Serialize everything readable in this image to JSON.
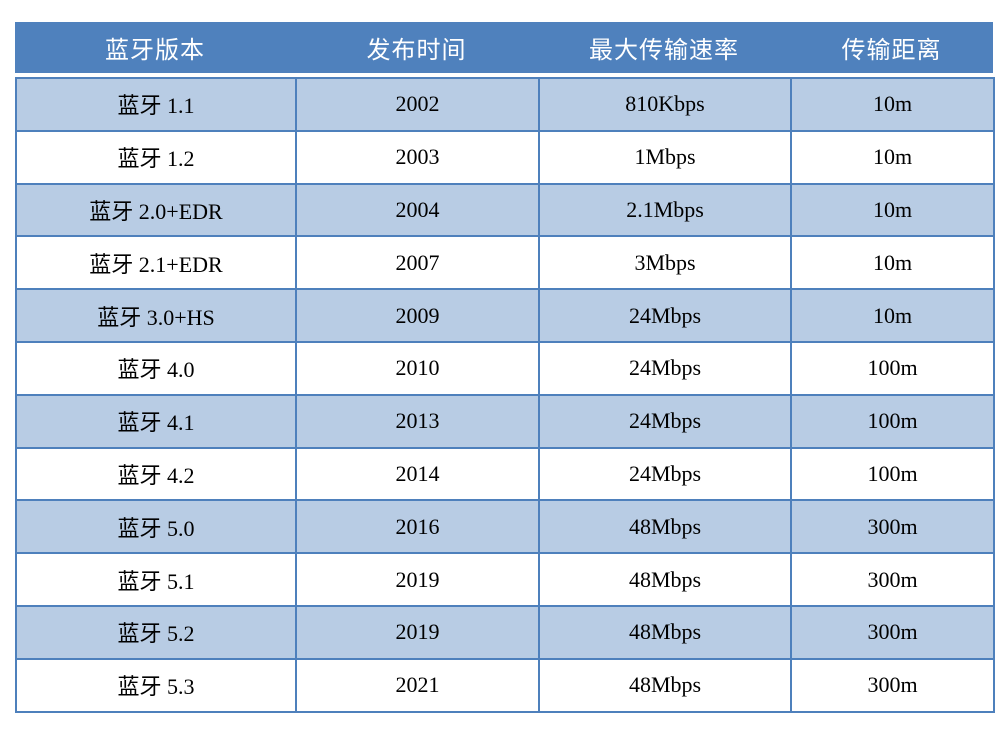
{
  "table": {
    "columns": [
      {
        "label": "蓝牙版本"
      },
      {
        "label": "发布时间"
      },
      {
        "label": "最大传输速率"
      },
      {
        "label": "传输距离"
      }
    ],
    "rows": [
      {
        "version": "蓝牙 1.1",
        "release_year": "2002",
        "max_speed": "810Kbps",
        "range": "10m"
      },
      {
        "version": "蓝牙 1.2",
        "release_year": "2003",
        "max_speed": "1Mbps",
        "range": "10m"
      },
      {
        "version": "蓝牙 2.0+EDR",
        "release_year": "2004",
        "max_speed": "2.1Mbps",
        "range": "10m"
      },
      {
        "version": "蓝牙 2.1+EDR",
        "release_year": "2007",
        "max_speed": "3Mbps",
        "range": "10m"
      },
      {
        "version": "蓝牙 3.0+HS",
        "release_year": "2009",
        "max_speed": "24Mbps",
        "range": "10m"
      },
      {
        "version": "蓝牙 4.0",
        "release_year": "2010",
        "max_speed": "24Mbps",
        "range": "100m"
      },
      {
        "version": "蓝牙 4.1",
        "release_year": "2013",
        "max_speed": "24Mbps",
        "range": "100m"
      },
      {
        "version": "蓝牙 4.2",
        "release_year": "2014",
        "max_speed": "24Mbps",
        "range": "100m"
      },
      {
        "version": "蓝牙 5.0",
        "release_year": "2016",
        "max_speed": "48Mbps",
        "range": "300m"
      },
      {
        "version": "蓝牙 5.1",
        "release_year": "2019",
        "max_speed": "48Mbps",
        "range": "300m"
      },
      {
        "version": "蓝牙 5.2",
        "release_year": "2019",
        "max_speed": "48Mbps",
        "range": "300m"
      },
      {
        "version": "蓝牙 5.3",
        "release_year": "2021",
        "max_speed": "48Mbps",
        "range": "300m"
      }
    ],
    "colors": {
      "header_bg": "#4F81BD",
      "header_text": "#FFFFFF",
      "row_alt_bg": "#B8CCE4",
      "row_bg": "#FFFFFF",
      "border": "#4E80BC",
      "text": "#000000"
    }
  }
}
